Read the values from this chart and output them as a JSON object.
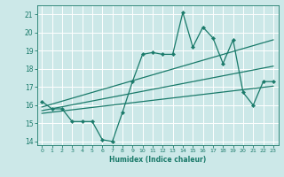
{
  "xlabel": "Humidex (Indice chaleur)",
  "bg_color": "#cce8e8",
  "grid_color": "#ffffff",
  "line_color": "#1a7a6a",
  "xlim": [
    -0.5,
    23.5
  ],
  "ylim": [
    13.8,
    21.5
  ],
  "yticks": [
    14,
    15,
    16,
    17,
    18,
    19,
    20,
    21
  ],
  "xticks": [
    0,
    1,
    2,
    3,
    4,
    5,
    6,
    7,
    8,
    9,
    10,
    11,
    12,
    13,
    14,
    15,
    16,
    17,
    18,
    19,
    20,
    21,
    22,
    23
  ],
  "data_x": [
    0,
    1,
    2,
    3,
    4,
    5,
    6,
    7,
    8,
    9,
    10,
    11,
    12,
    13,
    14,
    15,
    16,
    17,
    18,
    19,
    20,
    21,
    22,
    23
  ],
  "data_y": [
    16.2,
    15.8,
    15.8,
    15.1,
    15.1,
    15.1,
    14.1,
    14.0,
    15.6,
    17.3,
    18.8,
    18.9,
    18.8,
    18.8,
    21.1,
    19.2,
    20.3,
    19.7,
    18.3,
    19.6,
    16.7,
    16.0,
    17.3,
    17.3
  ],
  "trend1_x": [
    0,
    23
  ],
  "trend1_y": [
    15.9,
    19.6
  ],
  "trend2_x": [
    0,
    23
  ],
  "trend2_y": [
    15.55,
    17.05
  ],
  "trend3_x": [
    0,
    23
  ],
  "trend3_y": [
    15.7,
    18.15
  ]
}
